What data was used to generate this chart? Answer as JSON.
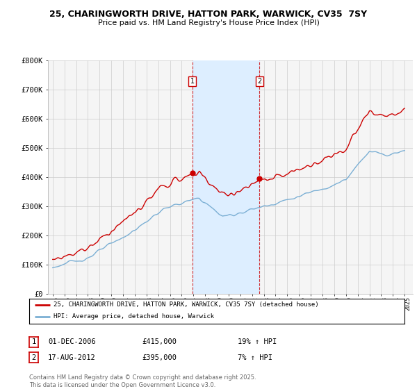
{
  "title_line1": "25, CHARINGWORTH DRIVE, HATTON PARK, WARWICK, CV35  7SY",
  "title_line2": "Price paid vs. HM Land Registry's House Price Index (HPI)",
  "ylim": [
    0,
    800000
  ],
  "yticks": [
    0,
    100000,
    200000,
    300000,
    400000,
    500000,
    600000,
    700000,
    800000
  ],
  "ytick_labels": [
    "£0",
    "£100K",
    "£200K",
    "£300K",
    "£400K",
    "£500K",
    "£600K",
    "£700K",
    "£800K"
  ],
  "transaction1_date": "01-DEC-2006",
  "transaction1_price": 415000,
  "transaction1_hpi_pct": "19%",
  "transaction2_date": "17-AUG-2012",
  "transaction2_price": 395000,
  "transaction2_hpi_pct": "7%",
  "transaction1_x": 2006.92,
  "transaction2_x": 2012.63,
  "line_red_color": "#cc0000",
  "line_blue_color": "#7bafd4",
  "shade_color": "#ddeeff",
  "grid_color": "#cccccc",
  "legend_label_red": "25, CHARINGWORTH DRIVE, HATTON PARK, WARWICK, CV35 7SY (detached house)",
  "legend_label_blue": "HPI: Average price, detached house, Warwick",
  "footer_text": "Contains HM Land Registry data © Crown copyright and database right 2025.\nThis data is licensed under the Open Government Licence v3.0.",
  "background_color": "#ffffff",
  "plot_bg_color": "#f5f5f5"
}
